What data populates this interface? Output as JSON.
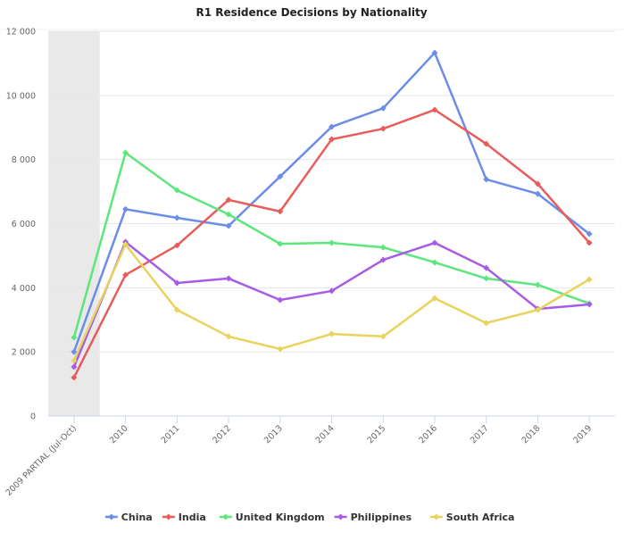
{
  "chart_data": {
    "type": "line",
    "title": "R1 Residence Decisions by Nationality",
    "xlabel": "",
    "ylabel": "",
    "categories": [
      "2009 PARTIAL (Jul-Oct)",
      "2010",
      "2011",
      "2012",
      "2013",
      "2014",
      "2015",
      "2016",
      "2017",
      "2018",
      "2019"
    ],
    "highlighted_category": "2009 PARTIAL (Jul-Oct)",
    "ylim": [
      0,
      12000
    ],
    "yticks": [
      0,
      2000,
      4000,
      6000,
      8000,
      10000,
      12000
    ],
    "ytick_labels": [
      "0",
      "2 000",
      "4 000",
      "6 000",
      "8 000",
      "10 000",
      "12 000"
    ],
    "grid": true,
    "legend_position": "bottom",
    "series": [
      {
        "name": "China",
        "color": "#6b8ce8",
        "values": [
          2000,
          6450,
          6180,
          5930,
          7470,
          9020,
          9600,
          11330,
          7380,
          6930,
          5680
        ]
      },
      {
        "name": "India",
        "color": "#e85c5c",
        "values": [
          1200,
          4400,
          5320,
          6740,
          6380,
          8630,
          8960,
          9550,
          8490,
          7240,
          5400
        ]
      },
      {
        "name": "United Kingdom",
        "color": "#5ce67c",
        "values": [
          2450,
          8210,
          7040,
          6290,
          5370,
          5400,
          5260,
          4790,
          4290,
          4090,
          3510
        ]
      },
      {
        "name": "Philippines",
        "color": "#a65ce8",
        "values": [
          1530,
          5430,
          4150,
          4290,
          3620,
          3900,
          4870,
          5400,
          4620,
          3340,
          3480
        ]
      },
      {
        "name": "South Africa",
        "color": "#e8d35c",
        "values": [
          1730,
          5350,
          3310,
          2480,
          2090,
          2560,
          2480,
          3670,
          2900,
          3310,
          4260
        ]
      }
    ]
  }
}
